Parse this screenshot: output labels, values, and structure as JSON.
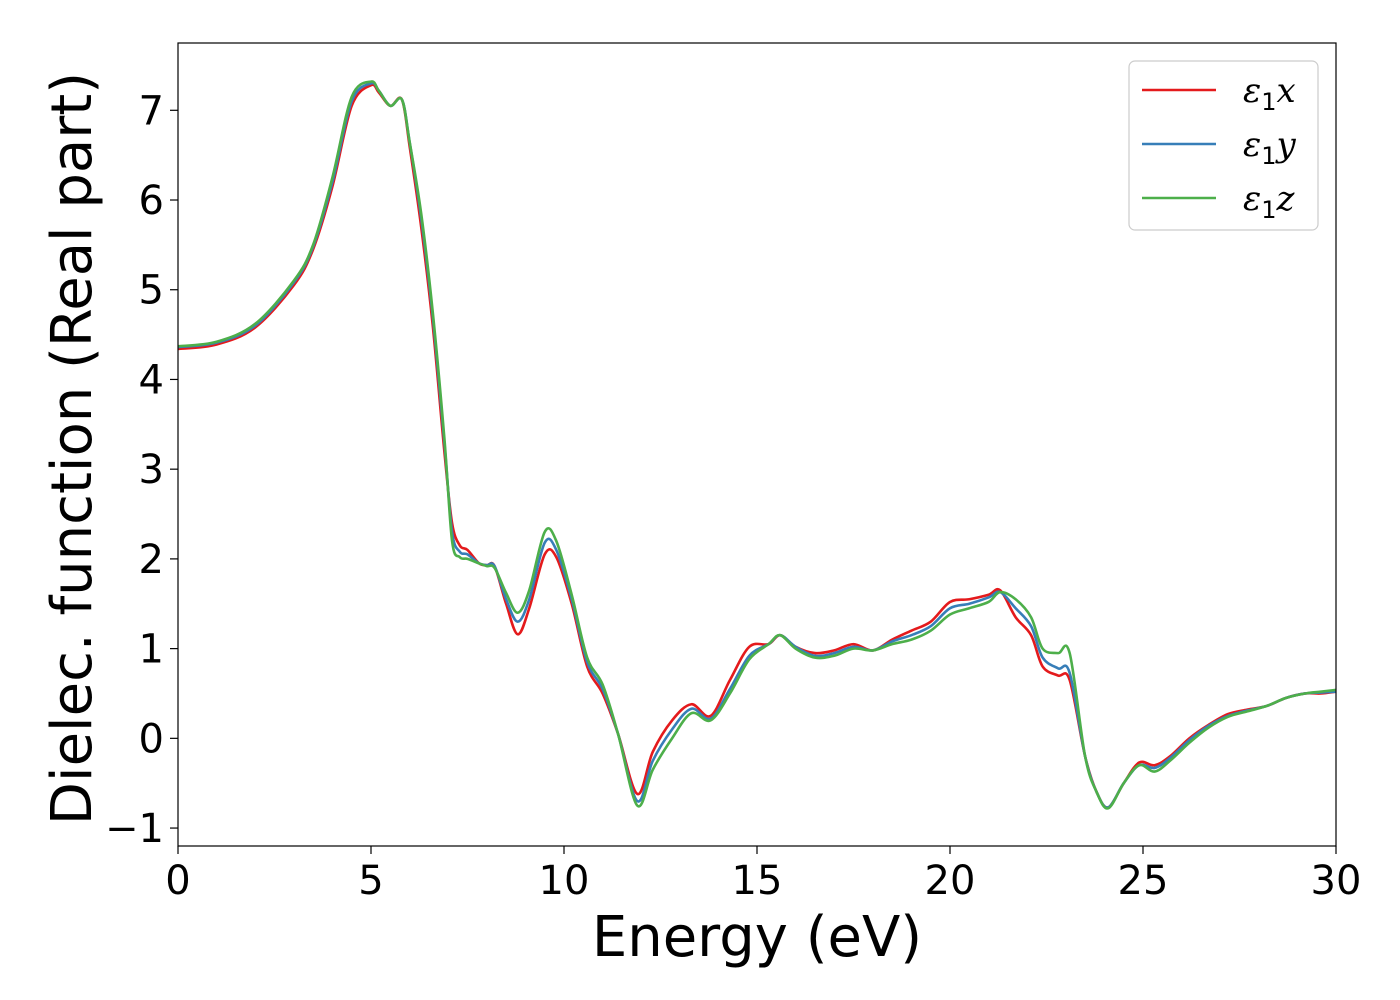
{
  "chart_data": {
    "type": "line",
    "title": "",
    "xlabel": "Energy (eV)",
    "ylabel": "Dielec. function (Real part)",
    "xlim": [
      0,
      30
    ],
    "ylim": [
      -1.2,
      7.75
    ],
    "xticks": [
      0,
      5,
      10,
      15,
      20,
      25,
      30
    ],
    "xtick_labels": [
      "0",
      "5",
      "10",
      "15",
      "20",
      "25",
      "30"
    ],
    "yticks": [
      -1,
      0,
      1,
      2,
      3,
      4,
      5,
      6,
      7
    ],
    "ytick_labels": [
      "−1",
      "0",
      "1",
      "2",
      "3",
      "4",
      "5",
      "6",
      "7"
    ],
    "grid": false,
    "legend_position": "top-right",
    "x": [
      0,
      1,
      2,
      3,
      3.5,
      4,
      4.5,
      5,
      5.2,
      5.5,
      5.8,
      6.0,
      6.3,
      6.6,
      6.9,
      7.1,
      7.3,
      7.5,
      7.8,
      8.0,
      8.2,
      8.5,
      8.8,
      9.1,
      9.5,
      9.8,
      10.2,
      10.6,
      11.0,
      11.4,
      11.9,
      12.3,
      12.8,
      13.3,
      13.8,
      14.3,
      14.8,
      15.3,
      15.6,
      16.0,
      16.5,
      17.0,
      17.5,
      18.0,
      18.5,
      19.0,
      19.5,
      20.0,
      20.5,
      21.0,
      21.3,
      21.7,
      22.1,
      22.4,
      22.8,
      23.1,
      23.5,
      23.8,
      24.1,
      24.5,
      24.9,
      25.3,
      25.7,
      26.2,
      26.7,
      27.2,
      27.7,
      28.2,
      28.7,
      29.2,
      29.6,
      30
    ],
    "series": [
      {
        "name": "ε₁x",
        "label_main": "ε",
        "label_sub": "1",
        "label_suffix": "x",
        "color": "#e41a1c",
        "values": [
          4.34,
          4.39,
          4.58,
          5.05,
          5.45,
          6.15,
          7.05,
          7.28,
          7.2,
          7.05,
          7.12,
          6.6,
          5.7,
          4.6,
          3.2,
          2.4,
          2.15,
          2.1,
          1.95,
          1.93,
          1.92,
          1.5,
          1.16,
          1.45,
          2.05,
          2.02,
          1.5,
          0.8,
          0.5,
          0.05,
          -0.62,
          -0.15,
          0.2,
          0.38,
          0.25,
          0.65,
          1.02,
          1.05,
          1.15,
          1.02,
          0.95,
          0.98,
          1.05,
          0.98,
          1.1,
          1.2,
          1.3,
          1.52,
          1.55,
          1.6,
          1.65,
          1.35,
          1.15,
          0.8,
          0.7,
          0.65,
          -0.2,
          -0.6,
          -0.77,
          -0.5,
          -0.27,
          -0.3,
          -0.2,
          0.0,
          0.15,
          0.27,
          0.32,
          0.36,
          0.45,
          0.5,
          0.5,
          0.52
        ]
      },
      {
        "name": "ε₁y",
        "label_main": "ε",
        "label_sub": "1",
        "label_suffix": "y",
        "color": "#377eb8",
        "values": [
          4.36,
          4.41,
          4.6,
          5.08,
          5.48,
          6.2,
          7.1,
          7.3,
          7.22,
          7.05,
          7.12,
          6.65,
          5.8,
          4.7,
          3.3,
          2.3,
          2.08,
          2.05,
          1.95,
          1.93,
          1.92,
          1.55,
          1.3,
          1.55,
          2.18,
          2.1,
          1.55,
          0.85,
          0.55,
          0.05,
          -0.7,
          -0.25,
          0.1,
          0.33,
          0.22,
          0.55,
          0.92,
          1.05,
          1.15,
          1.02,
          0.92,
          0.95,
          1.02,
          0.98,
          1.08,
          1.15,
          1.25,
          1.45,
          1.5,
          1.57,
          1.63,
          1.45,
          1.25,
          0.9,
          0.78,
          0.73,
          -0.2,
          -0.6,
          -0.77,
          -0.5,
          -0.3,
          -0.33,
          -0.22,
          -0.02,
          0.14,
          0.25,
          0.31,
          0.36,
          0.45,
          0.5,
          0.51,
          0.52
        ]
      },
      {
        "name": "ε₁z",
        "label_main": "ε",
        "label_sub": "1",
        "label_suffix": "z",
        "color": "#4daf4a",
        "values": [
          4.37,
          4.42,
          4.62,
          5.1,
          5.5,
          6.25,
          7.15,
          7.32,
          7.22,
          7.05,
          7.12,
          6.65,
          5.85,
          4.75,
          3.35,
          2.2,
          2.02,
          2.0,
          1.95,
          1.92,
          1.9,
          1.62,
          1.4,
          1.65,
          2.3,
          2.2,
          1.6,
          0.9,
          0.6,
          0.05,
          -0.75,
          -0.35,
          0.0,
          0.28,
          0.2,
          0.5,
          0.88,
          1.05,
          1.15,
          1.0,
          0.9,
          0.92,
          1.0,
          0.98,
          1.05,
          1.1,
          1.2,
          1.38,
          1.45,
          1.52,
          1.63,
          1.55,
          1.35,
          1.0,
          0.95,
          0.95,
          -0.2,
          -0.6,
          -0.78,
          -0.5,
          -0.3,
          -0.37,
          -0.25,
          -0.05,
          0.12,
          0.24,
          0.3,
          0.36,
          0.45,
          0.5,
          0.52,
          0.54
        ]
      }
    ]
  }
}
